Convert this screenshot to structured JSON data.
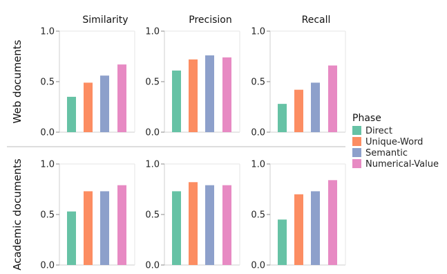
{
  "chart_data": {
    "type": "bar",
    "layout": "facet-grid",
    "metrics": [
      "Similarity",
      "Precision",
      "Recall"
    ],
    "rows": [
      "Web documents",
      "Academic documents"
    ],
    "ylim": [
      0,
      1
    ],
    "yticks": [
      "0.0",
      "0.5",
      "1.0"
    ],
    "grid": false,
    "legend_placement": "right",
    "legend": {
      "title": "Phase",
      "series": [
        {
          "name": "Direct",
          "color": "#66c2a5"
        },
        {
          "name": "Unique-Word",
          "color": "#fc8d62"
        },
        {
          "name": "Semantic",
          "color": "#8da0cb"
        },
        {
          "name": "Numerical-Value",
          "color": "#e78ac3"
        }
      ]
    },
    "panels": [
      {
        "row": "Web documents",
        "metric": "Similarity",
        "values": [
          0.35,
          0.49,
          0.56,
          0.67
        ]
      },
      {
        "row": "Web documents",
        "metric": "Precision",
        "values": [
          0.61,
          0.72,
          0.76,
          0.74
        ]
      },
      {
        "row": "Web documents",
        "metric": "Recall",
        "values": [
          0.28,
          0.42,
          0.49,
          0.66
        ]
      },
      {
        "row": "Academic documents",
        "metric": "Similarity",
        "values": [
          0.53,
          0.73,
          0.73,
          0.79
        ]
      },
      {
        "row": "Academic documents",
        "metric": "Precision",
        "values": [
          0.73,
          0.82,
          0.79,
          0.79
        ]
      },
      {
        "row": "Academic documents",
        "metric": "Recall",
        "values": [
          0.45,
          0.7,
          0.73,
          0.84
        ]
      }
    ]
  }
}
